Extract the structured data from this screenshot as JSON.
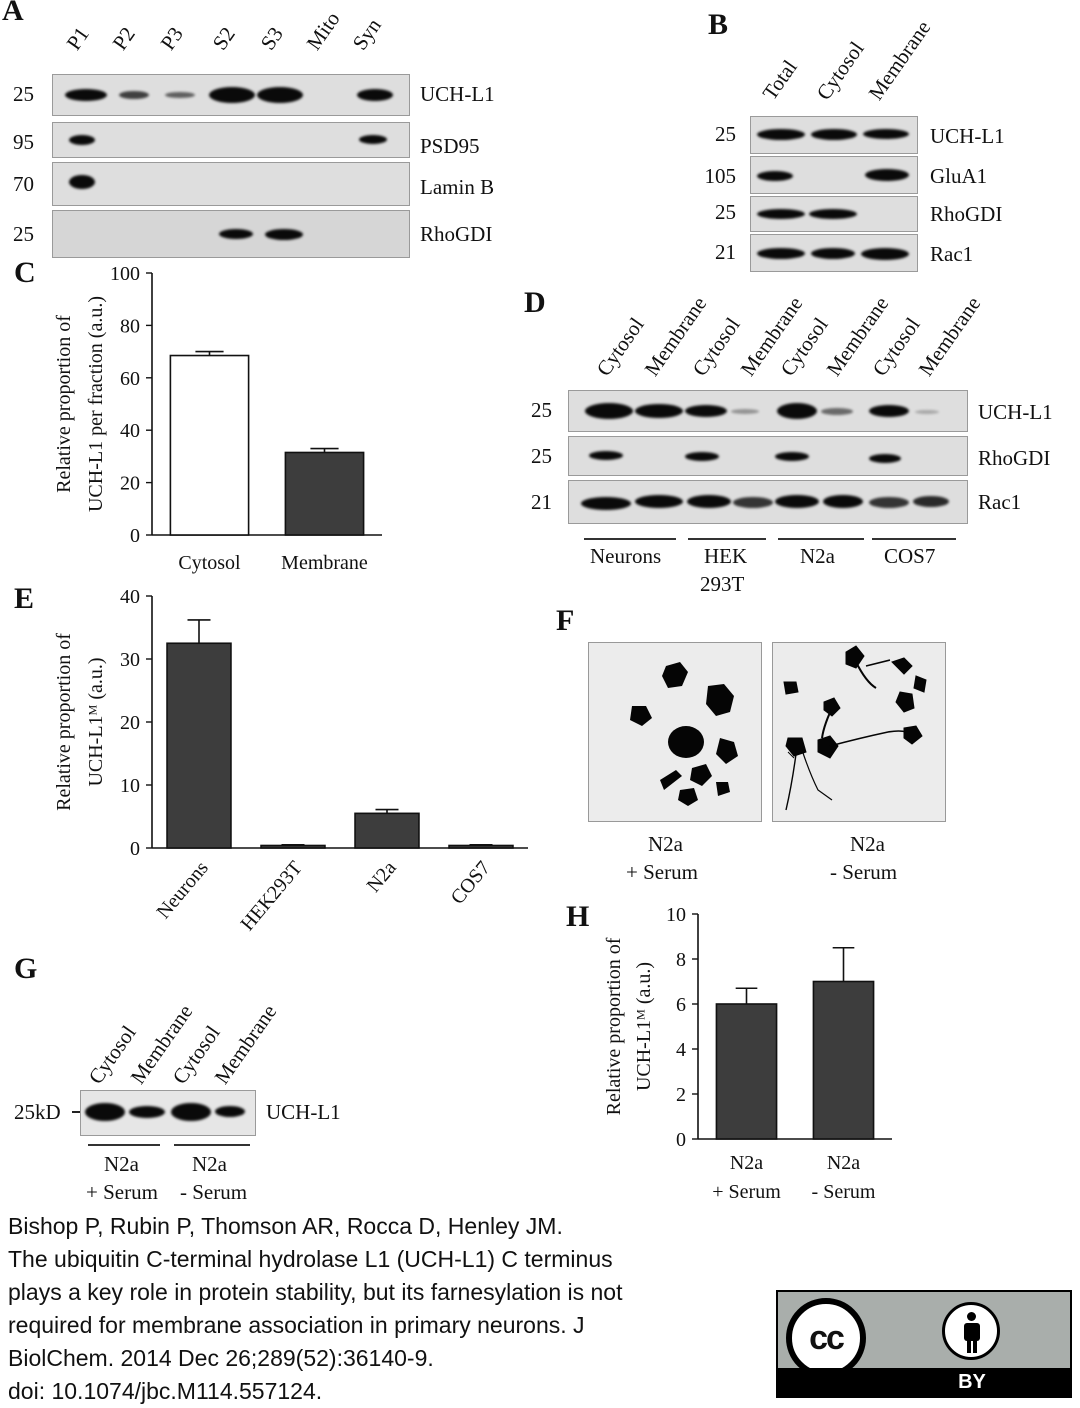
{
  "panelA": {
    "letter": "A",
    "lanes": [
      "P1",
      "P2",
      "P3",
      "S2",
      "S3",
      "Mito",
      "Syn"
    ],
    "rows": [
      {
        "mw": "25",
        "label": "UCH-L1"
      },
      {
        "mw": "95",
        "label": "PSD95"
      },
      {
        "mw": "70",
        "label": "Lamin B"
      },
      {
        "mw": "25",
        "label": "RhoGDI"
      }
    ]
  },
  "panelB": {
    "letter": "B",
    "lanes": [
      "Total",
      "Cytosol",
      "Membrane"
    ],
    "rows": [
      {
        "mw": "25",
        "label": "UCH-L1"
      },
      {
        "mw": "105",
        "label": "GluA1"
      },
      {
        "mw": "25",
        "label": "RhoGDI"
      },
      {
        "mw": "21",
        "label": "Rac1"
      }
    ]
  },
  "panelD": {
    "letter": "D",
    "lanes": [
      "Cytosol",
      "Membrane",
      "Cytosol",
      "Membrane",
      "Cytosol",
      "Membrane",
      "Cytosol",
      "Membrane"
    ],
    "rows": [
      {
        "mw": "25",
        "label": "UCH-L1"
      },
      {
        "mw": "25",
        "label": "RhoGDI"
      },
      {
        "mw": "21",
        "label": "Rac1"
      }
    ],
    "groups": [
      "Neurons",
      "HEK",
      "293T",
      "N2a",
      "COS7"
    ]
  },
  "panelF": {
    "letter": "F",
    "left_label_1": "N2a",
    "left_label_2": "+ Serum",
    "right_label_1": "N2a",
    "right_label_2": "- Serum"
  },
  "panelG": {
    "letter": "G",
    "lanes": [
      "Cytosol",
      "Membrane",
      "Cytosol",
      "Membrane"
    ],
    "mw": "25kD",
    "row_label": "UCH-L1",
    "group1_1": "N2a",
    "group1_2": "+ Serum",
    "group2_1": "N2a",
    "group2_2": "- Serum"
  },
  "chart_data": [
    {
      "panel": "C",
      "type": "bar",
      "categories": [
        "Cytosol",
        "Membrane"
      ],
      "values": [
        68.5,
        31.5
      ],
      "errors": [
        1.5,
        1.5
      ],
      "colors": [
        "#ffffff",
        "#3d3d3d"
      ],
      "ylabel_1": "Relative proportion of",
      "ylabel_2": "UCH-L1 per fraction (a.u.)",
      "ylim": [
        0,
        100
      ],
      "yticks": [
        "0",
        "20",
        "40",
        "60",
        "80",
        "100"
      ]
    },
    {
      "panel": "E",
      "type": "bar",
      "categories": [
        "Neurons",
        "HEK293T",
        "N2a",
        "COS7"
      ],
      "values": [
        32.5,
        0.4,
        5.5,
        0.4
      ],
      "errors": [
        3.7,
        0.1,
        0.6,
        0.1
      ],
      "colors": [
        "#3d3d3d",
        "#3d3d3d",
        "#3d3d3d",
        "#3d3d3d"
      ],
      "ylabel_1": "Relative proportion of",
      "ylabel_2": "UCH-L1ᴹ (a.u.)",
      "ylim": [
        0,
        40
      ],
      "yticks": [
        "0",
        "10",
        "20",
        "30",
        "40"
      ]
    },
    {
      "panel": "H",
      "type": "bar",
      "categories": [
        "N2a + Serum",
        "N2a - Serum"
      ],
      "cat_lines": [
        [
          "N2a",
          "+ Serum"
        ],
        [
          "N2a",
          "- Serum"
        ]
      ],
      "values": [
        6.0,
        7.0
      ],
      "errors": [
        0.7,
        1.5
      ],
      "colors": [
        "#3d3d3d",
        "#3d3d3d"
      ],
      "ylabel_1": "Relative proportion of",
      "ylabel_2": "UCH-L1ᴹ (a.u.)",
      "ylim": [
        0,
        10
      ],
      "yticks": [
        "0",
        "2",
        "4",
        "6",
        "8",
        "10"
      ]
    }
  ],
  "letters": {
    "C": "C",
    "E": "E",
    "H": "H"
  },
  "caption": {
    "line1": "Bishop P, Rubin P, Thomson AR, Rocca D, Henley JM.",
    "line2": "The ubiquitin C-terminal hydrolase L1 (UCH-L1) C terminus",
    "line3": "plays a key role in protein stability, but its farnesylation is not",
    "line4": "required for membrane association in primary neurons. J",
    "line5": "BiolChem. 2014 Dec 26;289(52):36140-9.",
    "line6": "doi: 10.1074/jbc.M114.557124."
  },
  "license": {
    "badge": "cc",
    "by": "BY",
    "icon": "person-icon"
  }
}
